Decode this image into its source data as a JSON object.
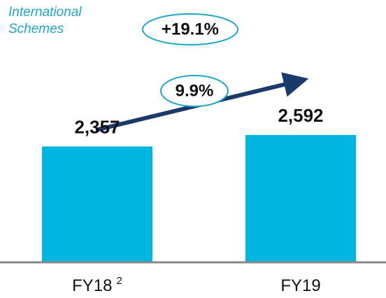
{
  "chart_data": {
    "type": "bar",
    "title": "International Schemes",
    "categories": [
      "FY18",
      "FY19"
    ],
    "category_notes": [
      "2",
      null
    ],
    "values": [
      2357,
      2592
    ],
    "value_labels": [
      "2,357",
      "2,592"
    ],
    "color": "#00b5e0",
    "annotations": [
      "+19.1%",
      "9.9%"
    ]
  }
}
